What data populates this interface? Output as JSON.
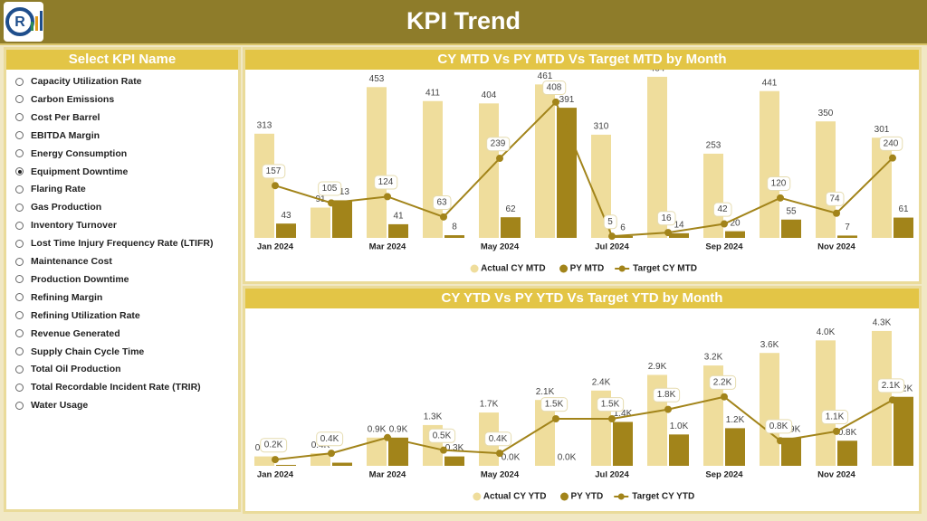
{
  "header": {
    "title": "KPI Trend"
  },
  "kpi_list": {
    "title": "Select KPI Name",
    "selected": 5,
    "items": [
      "Capacity Utilization Rate",
      "Carbon Emissions",
      "Cost Per Barrel",
      "EBITDA Margin",
      "Energy Consumption",
      "Equipment Downtime",
      "Flaring Rate",
      "Gas Production",
      "Inventory Turnover",
      "Lost Time Injury Frequency Rate (LTIFR)",
      "Maintenance Cost",
      "Production Downtime",
      "Refining Margin",
      "Refining Utilization Rate",
      "Revenue Generated",
      "Supply Chain Cycle Time",
      "Total Oil Production",
      "Total Recordable Incident Rate (TRIR)",
      "Water Usage"
    ]
  },
  "chart_data": [
    {
      "type": "combo",
      "title": "CY MTD Vs PY MTD Vs Target MTD by Month",
      "categories": [
        "Jan 2024",
        null,
        "Mar 2024",
        null,
        "May 2024",
        null,
        "Jul 2024",
        null,
        "Sep 2024",
        null,
        "Nov 2024",
        null
      ],
      "ylim": [
        0,
        500
      ],
      "series": [
        {
          "name": "Actual CY MTD",
          "type": "bar",
          "color": "#efdd9c",
          "values": [
            313,
            91,
            453,
            411,
            404,
            461,
            310,
            484,
            253,
            441,
            350,
            301
          ]
        },
        {
          "name": "PY MTD",
          "type": "bar",
          "color": "#a2841a",
          "values": [
            43,
            113,
            41,
            8,
            62,
            391,
            6,
            14,
            20,
            55,
            7,
            61
          ]
        },
        {
          "name": "Target CY MTD",
          "type": "line",
          "color": "#a2841a",
          "values": [
            157,
            105,
            124,
            63,
            239,
            408,
            5,
            16,
            42,
            120,
            74,
            240
          ]
        }
      ]
    },
    {
      "type": "combo",
      "title": "CY YTD Vs PY YTD Vs Target YTD by Month",
      "categories": [
        "Jan 2024",
        null,
        "Mar 2024",
        null,
        "May 2024",
        null,
        "Jul 2024",
        null,
        "Sep 2024",
        null,
        "Nov 2024",
        null
      ],
      "ylim": [
        0,
        4500
      ],
      "series": [
        {
          "name": "Actual CY YTD",
          "type": "bar",
          "color": "#efdd9c",
          "values": [
            300,
            400,
            900,
            1300,
            1700,
            2100,
            2400,
            2900,
            3200,
            3600,
            4000,
            4300
          ],
          "value_labels": [
            "0.3K",
            "0.4K",
            "0.9K",
            "1.3K",
            "1.7K",
            "2.1K",
            "2.4K",
            "2.9K",
            "3.2K",
            "3.6K",
            "4.0K",
            "4.3K"
          ]
        },
        {
          "name": "PY YTD",
          "type": "bar",
          "color": "#a2841a",
          "values": [
            30,
            100,
            900,
            300,
            0,
            0,
            1400,
            1000,
            1200,
            900,
            800,
            2200
          ],
          "value_labels": [
            null,
            null,
            "0.9K",
            "0.3K",
            "0.0K",
            "0.0K",
            "1.4K",
            "1.0K",
            "1.2K",
            "0.9K",
            "0.8K",
            "2.2K"
          ]
        },
        {
          "name": "Target CY YTD",
          "type": "line",
          "color": "#a2841a",
          "values": [
            200,
            400,
            900,
            500,
            400,
            1500,
            1500,
            1800,
            2200,
            800,
            1100,
            2100
          ],
          "value_labels": [
            "0.2K",
            "0.4K",
            null,
            "0.5K",
            "0.4K",
            "1.5K",
            "1.5K",
            "1.8K",
            "2.2K",
            "0.8K",
            "1.1K",
            "2.1K"
          ]
        }
      ]
    }
  ]
}
